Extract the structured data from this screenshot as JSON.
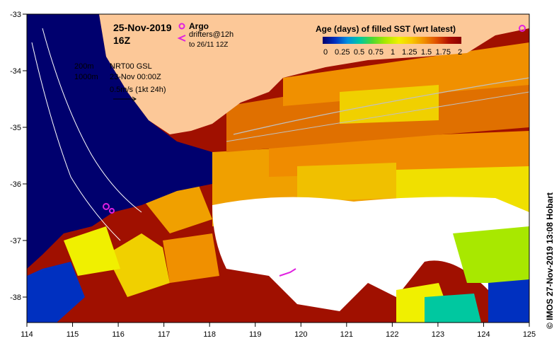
{
  "title": {
    "date": "25-Nov-2019",
    "hour": "16Z"
  },
  "argo_legend": {
    "label": "Argo",
    "drifters_line1": "drifters@12h",
    "drifters_line2": "to 26/11 12Z",
    "argo_color": "#e020e0",
    "drifter_color": "#e020e0"
  },
  "contour_legend": {
    "line1": "200m",
    "line2": "1000m"
  },
  "current_legend": {
    "line1": "NRT00 GSL",
    "line2": "23-Nov 00:00Z",
    "line3": "0.5m/s (1kt 24h)"
  },
  "colorbar": {
    "title": "Age (days) of filled SST (wrt latest)",
    "ticks": [
      "0",
      "0.25",
      "0.5",
      "0.75",
      "1",
      "1.25",
      "1.5",
      "1.75",
      "2"
    ],
    "colors": [
      "#00006e",
      "#0030c0",
      "#0090e0",
      "#00c8a0",
      "#50d830",
      "#a8e800",
      "#f0f000",
      "#f8c800",
      "#f09000",
      "#e05000",
      "#b01000",
      "#8a0000"
    ]
  },
  "axes": {
    "x_ticks": [
      "114",
      "115",
      "116",
      "117",
      "118",
      "119",
      "120",
      "121",
      "122",
      "123",
      "124",
      "125"
    ],
    "y_ticks": [
      "-33",
      "-34",
      "-35",
      "-36",
      "-37",
      "-38"
    ]
  },
  "credit": "© IMOS 27-Nov-2019 13:08 Hobart",
  "colors": {
    "land": "#fcc898",
    "deep_navy": "#00006e",
    "dark_red": "#a01000",
    "orange": "#f08c00",
    "yellow": "#f0f000",
    "white_gap": "#ffffff"
  }
}
